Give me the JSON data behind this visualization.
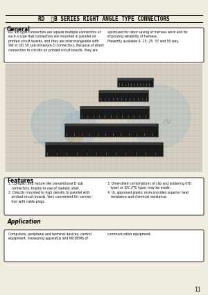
{
  "bg_color": "#f0ece0",
  "title": "RD  ①B SERIES RIGHT ANGLE TYPE CONNECTORS",
  "page_number": "11",
  "general_title": "General",
  "general_text_left": "RD ①B type connectors are square multiple connectors of\nsuch a type that connectors are mounted in parallel on\nprinted circuit boards, and they are interchangeable with\nSW or DD 50 sub-miniature D connectors. Because of direct\nconnection to circuits on printed circuit boards, they are",
  "general_text_right": "optimized for labor saving of harness work and for\nimproving reliability of harness.\nPresently available 9, 15, 25, 37 and 50 way.",
  "features_title": "Features",
  "features_text_left": "1. Compact and nature like conventional D sub\n   connectors, thanks to use of metallic shell.\n2. Directly mounted to high density to parallel with\n   printed circuit boards. Very convenient for connec-\n   tion with cable plugs.",
  "features_text_right": "3. Diversified combinations of clip and soldering (HD\n   type) or IDC (ITC type) may be made.\n4. UL approved plastic resin provides superior heat\n   resistance and chemical resistance.",
  "application_title": "Application",
  "application_text_left": "Computers, peripheral and terminal devices, control\nequipment, measuring apparatus and MODEMS of",
  "application_text_right": "communication equipment.",
  "grid_bg": "#cfc8b8",
  "grid_line": "#b8b0a0",
  "watermark_blue": "#5599cc",
  "watermark_orange": "#cc8833"
}
